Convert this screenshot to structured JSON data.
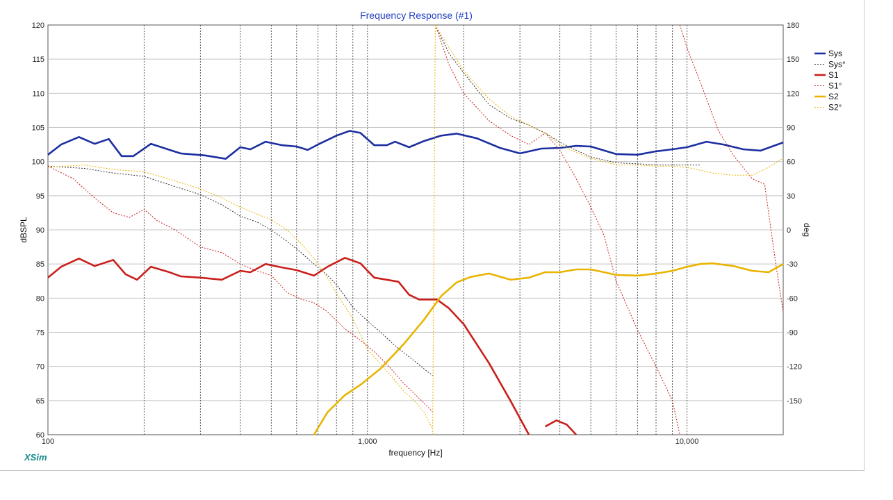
{
  "chart_data": {
    "type": "line",
    "title": "Frequency Response (#1)",
    "xlabel": "frequency [Hz]",
    "ylabel": "dBSPL",
    "y2label": "deg",
    "xscale": "log",
    "xlim": [
      100,
      20000
    ],
    "ylim": [
      60,
      120
    ],
    "y2lim": [
      -180,
      180
    ],
    "grid": true,
    "legend_position": "right",
    "x_ticks": [
      "100",
      "1,000",
      "10,000"
    ],
    "x_tick_values": [
      100,
      1000,
      10000
    ],
    "y_ticks": [
      60,
      65,
      70,
      75,
      80,
      85,
      90,
      95,
      100,
      105,
      110,
      115,
      120
    ],
    "y2_ticks": [
      -150,
      -120,
      -90,
      -60,
      -30,
      0,
      30,
      60,
      90,
      120,
      150,
      180
    ],
    "brand": "XSim",
    "series": [
      {
        "name": "Sys",
        "axis": "left",
        "style": "solid",
        "color": "#1c2fa0",
        "points": [
          [
            100,
            101
          ],
          [
            110,
            102.5
          ],
          [
            125,
            103.6
          ],
          [
            140,
            102.6
          ],
          [
            155,
            103.3
          ],
          [
            170,
            100.8
          ],
          [
            185,
            100.8
          ],
          [
            210,
            102.6
          ],
          [
            260,
            101.2
          ],
          [
            310,
            100.9
          ],
          [
            360,
            100.4
          ],
          [
            400,
            102.1
          ],
          [
            430,
            101.8
          ],
          [
            480,
            102.9
          ],
          [
            540,
            102.4
          ],
          [
            600,
            102.2
          ],
          [
            650,
            101.7
          ],
          [
            700,
            102.5
          ],
          [
            800,
            103.8
          ],
          [
            880,
            104.5
          ],
          [
            950,
            104.2
          ],
          [
            1050,
            102.4
          ],
          [
            1150,
            102.4
          ],
          [
            1220,
            102.9
          ],
          [
            1350,
            102.1
          ],
          [
            1500,
            103
          ],
          [
            1700,
            103.8
          ],
          [
            1900,
            104.1
          ],
          [
            2200,
            103.4
          ],
          [
            2600,
            102
          ],
          [
            3000,
            101.2
          ],
          [
            3500,
            101.9
          ],
          [
            4000,
            102
          ],
          [
            4500,
            102.3
          ],
          [
            5000,
            102.2
          ],
          [
            6000,
            101.1
          ],
          [
            7000,
            101
          ],
          [
            8000,
            101.5
          ],
          [
            9000,
            101.8
          ],
          [
            10000,
            102.1
          ],
          [
            11500,
            102.9
          ],
          [
            13000,
            102.5
          ],
          [
            15000,
            101.8
          ],
          [
            17000,
            101.6
          ],
          [
            20000,
            102.8
          ]
        ]
      },
      {
        "name": "Sys°",
        "axis": "right",
        "style": "dotted",
        "color": "#333333",
        "segments": [
          [
            [
              100,
              56
            ],
            [
              130,
              54
            ],
            [
              160,
              50
            ],
            [
              200,
              47
            ],
            [
              250,
              38
            ],
            [
              300,
              31
            ],
            [
              350,
              22
            ],
            [
              400,
              12
            ],
            [
              450,
              7
            ],
            [
              500,
              0
            ],
            [
              560,
              -10
            ],
            [
              620,
              -20
            ],
            [
              680,
              -30
            ],
            [
              750,
              -40
            ],
            [
              800,
              -48
            ],
            [
              900,
              -68
            ],
            [
              1000,
              -80
            ],
            [
              1100,
              -90
            ],
            [
              1200,
              -100
            ],
            [
              1300,
              -108
            ],
            [
              1400,
              -115
            ],
            [
              1500,
              -122
            ],
            [
              1600,
              -128
            ]
          ],
          [
            [
              1630,
              180
            ],
            [
              1800,
              155
            ],
            [
              2000,
              138
            ],
            [
              2400,
              110
            ],
            [
              2800,
              98
            ],
            [
              3200,
              92
            ],
            [
              3600,
              85
            ],
            [
              4000,
              77
            ],
            [
              4500,
              70
            ],
            [
              5000,
              64
            ],
            [
              6000,
              59
            ],
            [
              7000,
              58
            ],
            [
              8000,
              57
            ],
            [
              9000,
              57
            ],
            [
              10000,
              57
            ],
            [
              11000,
              57
            ]
          ]
        ]
      },
      {
        "name": "S1",
        "axis": "left",
        "style": "solid",
        "color": "#c8201c",
        "segments": [
          [
            [
              100,
              83
            ],
            [
              110,
              84.6
            ],
            [
              125,
              85.8
            ],
            [
              140,
              84.7
            ],
            [
              160,
              85.6
            ],
            [
              175,
              83.5
            ],
            [
              190,
              82.7
            ],
            [
              210,
              84.6
            ],
            [
              240,
              83.8
            ],
            [
              260,
              83.2
            ],
            [
              300,
              83
            ],
            [
              350,
              82.7
            ],
            [
              400,
              84
            ],
            [
              430,
              83.8
            ],
            [
              480,
              85
            ],
            [
              540,
              84.5
            ],
            [
              600,
              84.1
            ],
            [
              680,
              83.3
            ],
            [
              750,
              84.6
            ],
            [
              850,
              85.9
            ],
            [
              950,
              85.1
            ],
            [
              1050,
              83
            ],
            [
              1250,
              82.4
            ],
            [
              1350,
              80.5
            ],
            [
              1450,
              79.8
            ],
            [
              1650,
              79.8
            ],
            [
              1800,
              78.5
            ],
            [
              2000,
              76.2
            ],
            [
              2400,
              70.5
            ],
            [
              2800,
              65
            ],
            [
              3200,
              60
            ]
          ],
          [
            [
              3600,
              61.2
            ],
            [
              3900,
              62.1
            ],
            [
              4200,
              61.5
            ],
            [
              4500,
              60
            ]
          ]
        ]
      },
      {
        "name": "S1°",
        "axis": "right",
        "style": "dotted",
        "color": "#c8201c",
        "segments": [
          [
            [
              100,
              56
            ],
            [
              120,
              45
            ],
            [
              140,
              28
            ],
            [
              160,
              15
            ],
            [
              180,
              11
            ],
            [
              200,
              18
            ],
            [
              220,
              8
            ],
            [
              250,
              0
            ],
            [
              300,
              -15
            ],
            [
              350,
              -20
            ],
            [
              400,
              -30
            ],
            [
              450,
              -36
            ],
            [
              500,
              -40
            ],
            [
              560,
              -55
            ],
            [
              620,
              -61
            ],
            [
              680,
              -64
            ],
            [
              750,
              -72
            ],
            [
              850,
              -87
            ],
            [
              950,
              -97
            ],
            [
              1050,
              -107
            ],
            [
              1150,
              -118
            ],
            [
              1300,
              -135
            ],
            [
              1500,
              -152
            ],
            [
              1600,
              -160
            ]
          ],
          [
            [
              1630,
              180
            ],
            [
              1800,
              145
            ],
            [
              2000,
              120
            ],
            [
              2400,
              96
            ],
            [
              2800,
              83
            ],
            [
              3200,
              75
            ],
            [
              3600,
              85
            ],
            [
              4000,
              70
            ],
            [
              4500,
              45
            ],
            [
              5000,
              20
            ],
            [
              5500,
              -5
            ],
            [
              6000,
              -45
            ],
            [
              7000,
              -88
            ],
            [
              8000,
              -120
            ],
            [
              9000,
              -150
            ],
            [
              9500,
              -180
            ]
          ],
          [
            [
              9500,
              180
            ],
            [
              10000,
              160
            ],
            [
              11000,
              130
            ],
            [
              12500,
              88
            ],
            [
              14000,
              65
            ],
            [
              16000,
              45
            ],
            [
              17500,
              40
            ],
            [
              19000,
              -32
            ],
            [
              20000,
              -72
            ]
          ]
        ]
      },
      {
        "name": "S2",
        "axis": "left",
        "style": "solid",
        "color": "#e8b400",
        "points": [
          [
            680,
            60
          ],
          [
            750,
            63.3
          ],
          [
            850,
            65.8
          ],
          [
            950,
            67.3
          ],
          [
            1100,
            69.7
          ],
          [
            1300,
            73.3
          ],
          [
            1500,
            76.8
          ],
          [
            1700,
            80.3
          ],
          [
            1900,
            82.3
          ],
          [
            2100,
            83.1
          ],
          [
            2400,
            83.6
          ],
          [
            2800,
            82.7
          ],
          [
            3200,
            83
          ],
          [
            3600,
            83.8
          ],
          [
            4000,
            83.8
          ],
          [
            4500,
            84.2
          ],
          [
            5000,
            84.2
          ],
          [
            5500,
            83.8
          ],
          [
            6000,
            83.4
          ],
          [
            7000,
            83.3
          ],
          [
            8000,
            83.6
          ],
          [
            9000,
            84
          ],
          [
            10000,
            84.6
          ],
          [
            11000,
            85
          ],
          [
            12000,
            85.1
          ],
          [
            14000,
            84.7
          ],
          [
            16000,
            84
          ],
          [
            18000,
            83.8
          ],
          [
            20000,
            85
          ]
        ]
      },
      {
        "name": "S2°",
        "axis": "right",
        "style": "dotted",
        "color": "#e8b400",
        "segments": [
          [
            [
              100,
              55
            ],
            [
              130,
              57
            ],
            [
              160,
              53
            ],
            [
              200,
              51
            ],
            [
              250,
              43
            ],
            [
              300,
              36
            ],
            [
              350,
              28
            ],
            [
              400,
              20
            ],
            [
              450,
              14
            ],
            [
              500,
              9
            ],
            [
              560,
              0
            ],
            [
              620,
              -12
            ],
            [
              680,
              -25
            ],
            [
              750,
              -42
            ],
            [
              800,
              -56
            ],
            [
              900,
              -78
            ],
            [
              1000,
              -105
            ],
            [
              1100,
              -118
            ],
            [
              1200,
              -130
            ],
            [
              1300,
              -142
            ],
            [
              1400,
              -150
            ],
            [
              1500,
              -160
            ],
            [
              1600,
              -175
            ]
          ],
          [
            [
              1600,
              -180
            ],
            [
              1630,
              180
            ]
          ],
          [
            [
              1630,
              180
            ],
            [
              1800,
              160
            ],
            [
              2000,
              140
            ],
            [
              2400,
              115
            ],
            [
              2800,
              100
            ],
            [
              3200,
              92
            ],
            [
              3600,
              85
            ],
            [
              4000,
              75
            ],
            [
              4500,
              68
            ],
            [
              5000,
              63
            ],
            [
              6000,
              57
            ],
            [
              7000,
              57
            ],
            [
              8000,
              56
            ],
            [
              9000,
              56
            ],
            [
              10000,
              55
            ],
            [
              12000,
              50
            ],
            [
              14000,
              48
            ],
            [
              16000,
              48
            ],
            [
              18000,
              55
            ],
            [
              20000,
              63
            ]
          ]
        ]
      }
    ]
  }
}
